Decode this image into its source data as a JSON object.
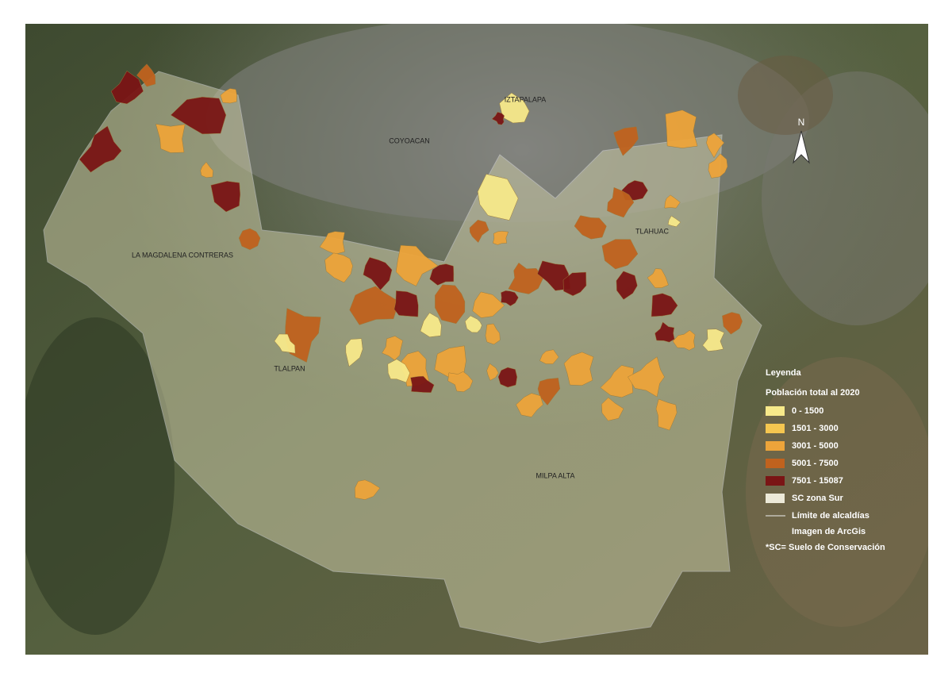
{
  "map": {
    "north": "N",
    "places": [
      "LA MAGDALENA CONTRERAS",
      "TLALPAN",
      "MILPA ALTA",
      "TLAHUAC",
      "COYOACAN",
      "IZTAPALAPA"
    ],
    "legend": {
      "title": "Leyenda",
      "subtitle": "Población total al 2020",
      "classes": [
        {
          "name": "0 - 1500",
          "color": "#f7e98a"
        },
        {
          "name": "1501 - 3000",
          "color": "#f5c650"
        },
        {
          "name": "3001 - 5000",
          "color": "#eda43a"
        },
        {
          "name": "5001 - 7500",
          "color": "#c0621e"
        },
        {
          "name": "7501 - 15087",
          "color": "#7a1515"
        },
        {
          "name": "SC zona Sur",
          "color": "#ece9d8"
        }
      ],
      "notes": [
        "Límite de alcaldías",
        "Imagen de ArcGis",
        "*SC= Suelo de Conservación"
      ]
    }
  }
}
